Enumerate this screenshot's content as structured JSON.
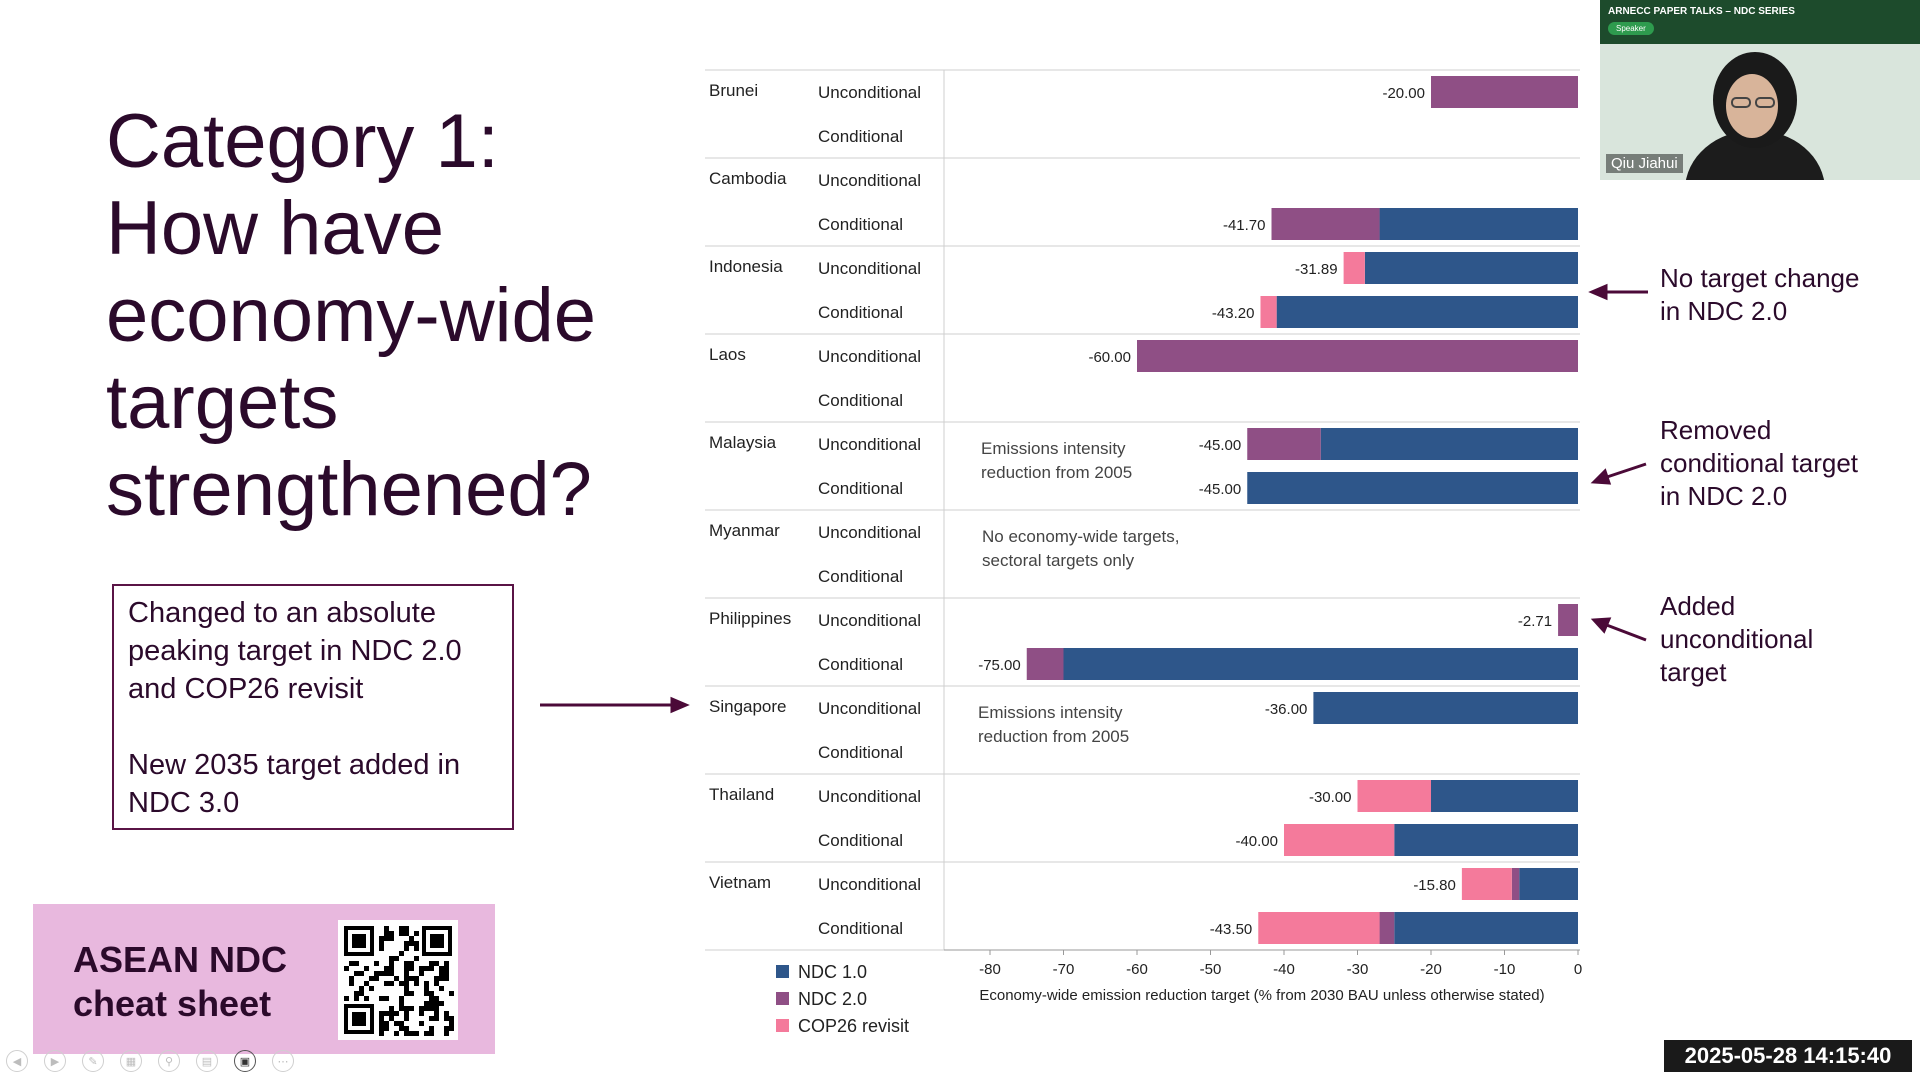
{
  "title_lines": [
    "Category 1:",
    "How have",
    "economy-wide",
    "targets",
    "strengthened?"
  ],
  "note_box": {
    "para1": "Changed to an absolute peaking target in NDC 2.0 and COP26 revisit",
    "para2": "New 2035 target added in NDC 3.0"
  },
  "cheat_sheet": {
    "line1": "ASEAN NDC",
    "line2": "cheat sheet"
  },
  "annotations": [
    {
      "lines": [
        "No target change",
        "in NDC 2.0"
      ]
    },
    {
      "lines": [
        "Removed",
        "conditional target",
        "in NDC 2.0"
      ]
    },
    {
      "lines": [
        "Added",
        "unconditional",
        "target"
      ]
    }
  ],
  "speaker": {
    "banner_title": "ARNECC PAPER TALKS – NDC SERIES",
    "tag": "Speaker",
    "name": "Qiu Jiahui"
  },
  "timestamp": "2025-05-28 14:15:40",
  "colors": {
    "ndc1": "#2e568a",
    "ndc2": "#8f4f85",
    "cop26": "#f47a9b",
    "title": "#2b0a2b"
  },
  "chart_data": {
    "type": "bar",
    "orientation": "horizontal-stacked",
    "xlabel": "Economy-wide emission reduction target (% from 2030 BAU unless otherwise stated)",
    "xlim": [
      -85,
      0
    ],
    "xticks": [
      -80,
      -70,
      -60,
      -50,
      -40,
      -30,
      -20,
      -10,
      0
    ],
    "legend": [
      "NDC 1.0",
      "NDC 2.0",
      "COP26 revisit"
    ],
    "legend_position": "bottom-left",
    "countries": [
      {
        "name": "Brunei",
        "rows": [
          {
            "label": "Unconditional",
            "total": -20.0,
            "segments": [
              {
                "s": "NDC 2.0",
                "from": 0,
                "to": -20
              }
            ]
          },
          {
            "label": "Conditional",
            "total": null,
            "segments": []
          }
        ]
      },
      {
        "name": "Cambodia",
        "rows": [
          {
            "label": "Unconditional",
            "total": null,
            "segments": []
          },
          {
            "label": "Conditional",
            "total": -41.7,
            "segments": [
              {
                "s": "NDC 1.0",
                "from": 0,
                "to": -27
              },
              {
                "s": "NDC 2.0",
                "from": -27,
                "to": -41.7
              }
            ]
          }
        ]
      },
      {
        "name": "Indonesia",
        "rows": [
          {
            "label": "Unconditional",
            "total": -31.89,
            "segments": [
              {
                "s": "NDC 1.0",
                "from": 0,
                "to": -29
              },
              {
                "s": "COP26 revisit",
                "from": -29,
                "to": -31.89
              }
            ]
          },
          {
            "label": "Conditional",
            "total": -43.2,
            "segments": [
              {
                "s": "NDC 1.0",
                "from": 0,
                "to": -41
              },
              {
                "s": "COP26 revisit",
                "from": -41,
                "to": -43.2
              }
            ]
          }
        ]
      },
      {
        "name": "Laos",
        "rows": [
          {
            "label": "Unconditional",
            "total": -60.0,
            "segments": [
              {
                "s": "NDC 2.0",
                "from": 0,
                "to": -60
              }
            ]
          },
          {
            "label": "Conditional",
            "total": null,
            "segments": []
          }
        ]
      },
      {
        "name": "Malaysia",
        "note": "Emissions intensity reduction from 2005",
        "rows": [
          {
            "label": "Unconditional",
            "total": -45.0,
            "segments": [
              {
                "s": "NDC 1.0",
                "from": 0,
                "to": -35
              },
              {
                "s": "NDC 2.0",
                "from": -35,
                "to": -45
              }
            ]
          },
          {
            "label": "Conditional",
            "total": -45.0,
            "segments": [
              {
                "s": "NDC 1.0",
                "from": 0,
                "to": -45
              }
            ]
          }
        ]
      },
      {
        "name": "Myanmar",
        "note": "No economy-wide targets, sectoral targets only",
        "rows": [
          {
            "label": "Unconditional",
            "total": null,
            "segments": []
          },
          {
            "label": "Conditional",
            "total": null,
            "segments": []
          }
        ]
      },
      {
        "name": "Philippines",
        "rows": [
          {
            "label": "Unconditional",
            "total": -2.71,
            "segments": [
              {
                "s": "NDC 2.0",
                "from": 0,
                "to": -2.71
              }
            ]
          },
          {
            "label": "Conditional",
            "total": -75.0,
            "segments": [
              {
                "s": "NDC 1.0",
                "from": 0,
                "to": -70
              },
              {
                "s": "NDC 2.0",
                "from": -70,
                "to": -75
              }
            ]
          }
        ]
      },
      {
        "name": "Singapore",
        "note": "Emissions intensity reduction from 2005",
        "rows": [
          {
            "label": "Unconditional",
            "total": -36.0,
            "segments": [
              {
                "s": "NDC 1.0",
                "from": 0,
                "to": -36
              }
            ]
          },
          {
            "label": "Conditional",
            "total": null,
            "segments": []
          }
        ]
      },
      {
        "name": "Thailand",
        "rows": [
          {
            "label": "Unconditional",
            "total": -30.0,
            "segments": [
              {
                "s": "NDC 1.0",
                "from": 0,
                "to": -20
              },
              {
                "s": "COP26 revisit",
                "from": -20,
                "to": -30
              }
            ]
          },
          {
            "label": "Conditional",
            "total": -40.0,
            "segments": [
              {
                "s": "NDC 1.0",
                "from": 0,
                "to": -25
              },
              {
                "s": "COP26 revisit",
                "from": -25,
                "to": -40
              }
            ]
          }
        ]
      },
      {
        "name": "Vietnam",
        "rows": [
          {
            "label": "Unconditional",
            "total": -15.8,
            "segments": [
              {
                "s": "NDC 1.0",
                "from": 0,
                "to": -8
              },
              {
                "s": "NDC 2.0",
                "from": -8,
                "to": -9
              },
              {
                "s": "COP26 revisit",
                "from": -9,
                "to": -15.8
              }
            ]
          },
          {
            "label": "Conditional",
            "total": -43.5,
            "segments": [
              {
                "s": "NDC 1.0",
                "from": 0,
                "to": -25
              },
              {
                "s": "NDC 2.0",
                "from": -25,
                "to": -27
              },
              {
                "s": "COP26 revisit",
                "from": -27,
                "to": -43.5
              }
            ]
          }
        ]
      }
    ]
  }
}
